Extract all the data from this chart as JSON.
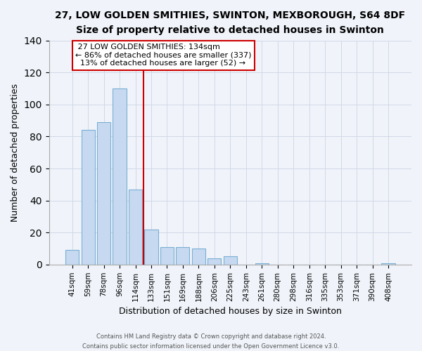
{
  "title": "27, LOW GOLDEN SMITHIES, SWINTON, MEXBOROUGH, S64 8DF",
  "subtitle": "Size of property relative to detached houses in Swinton",
  "xlabel": "Distribution of detached houses by size in Swinton",
  "ylabel": "Number of detached properties",
  "bar_labels": [
    "41sqm",
    "59sqm",
    "78sqm",
    "96sqm",
    "114sqm",
    "133sqm",
    "151sqm",
    "169sqm",
    "188sqm",
    "206sqm",
    "225sqm",
    "243sqm",
    "261sqm",
    "280sqm",
    "298sqm",
    "316sqm",
    "335sqm",
    "353sqm",
    "371sqm",
    "390sqm",
    "408sqm"
  ],
  "bar_values": [
    9,
    84,
    89,
    110,
    47,
    22,
    11,
    11,
    10,
    4,
    5,
    0,
    1,
    0,
    0,
    0,
    0,
    0,
    0,
    0,
    1
  ],
  "property_label": "27 LOW GOLDEN SMITHIES: 134sqm",
  "smaller_pct": 86,
  "smaller_n": 337,
  "larger_pct": 13,
  "larger_n": 52,
  "vline_x_index": 5,
  "bar_color": "#c6d9f0",
  "bar_edge_color": "#7bafd4",
  "vline_color": "#cc0000",
  "box_edge_color": "#cc0000",
  "annotation_box_color": "#ffffff",
  "footer_line1": "Contains HM Land Registry data © Crown copyright and database right 2024.",
  "footer_line2": "Contains public sector information licensed under the Open Government Licence v3.0.",
  "ylim": [
    0,
    140
  ],
  "yticks": [
    0,
    20,
    40,
    60,
    80,
    100,
    120,
    140
  ],
  "grid_color": "#d0d8e8",
  "bg_color": "#f0f4fa"
}
